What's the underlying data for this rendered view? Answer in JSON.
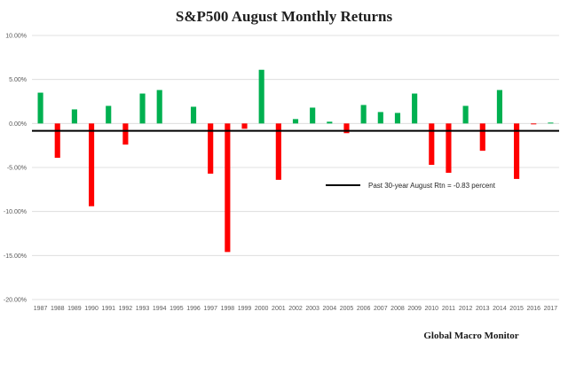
{
  "chart_data": {
    "type": "bar",
    "title": "S&P500 August Monthly Returns",
    "xlabel": "",
    "ylabel": "",
    "ylim": [
      -20,
      10
    ],
    "y_ticks": [
      10,
      5,
      0,
      -5,
      -10,
      -15,
      -20
    ],
    "y_tick_labels": [
      "10.00%",
      "5.00%",
      "0.00%",
      "-5.00%",
      "-10.00%",
      "-15.00%",
      "-20.00%"
    ],
    "grid": true,
    "categories": [
      "1987",
      "1988",
      "1989",
      "1990",
      "1991",
      "1992",
      "1993",
      "1994",
      "1995",
      "1996",
      "1997",
      "1998",
      "1999",
      "2000",
      "2001",
      "2002",
      "2003",
      "2004",
      "2005",
      "2006",
      "2007",
      "2008",
      "2009",
      "2010",
      "2011",
      "2012",
      "2013",
      "2014",
      "2015",
      "2016",
      "2017"
    ],
    "values": [
      3.5,
      -3.9,
      1.6,
      -9.4,
      2.0,
      -2.4,
      3.4,
      3.8,
      0.0,
      1.9,
      -5.7,
      -14.6,
      -0.6,
      6.1,
      -6.4,
      0.5,
      1.8,
      0.2,
      -1.1,
      2.1,
      1.3,
      1.2,
      3.4,
      -4.7,
      -5.6,
      2.0,
      -3.1,
      3.8,
      -6.3,
      -0.1,
      0.1
    ],
    "colors": {
      "positive": "#00b050",
      "negative": "#ff0000",
      "reference": "#000000",
      "grid": "#d9d9d9"
    },
    "reference_line": {
      "value": -0.83,
      "label": "Past 30-year August Rtn = -0.83 percent"
    },
    "source": "Global Macro Monitor"
  }
}
